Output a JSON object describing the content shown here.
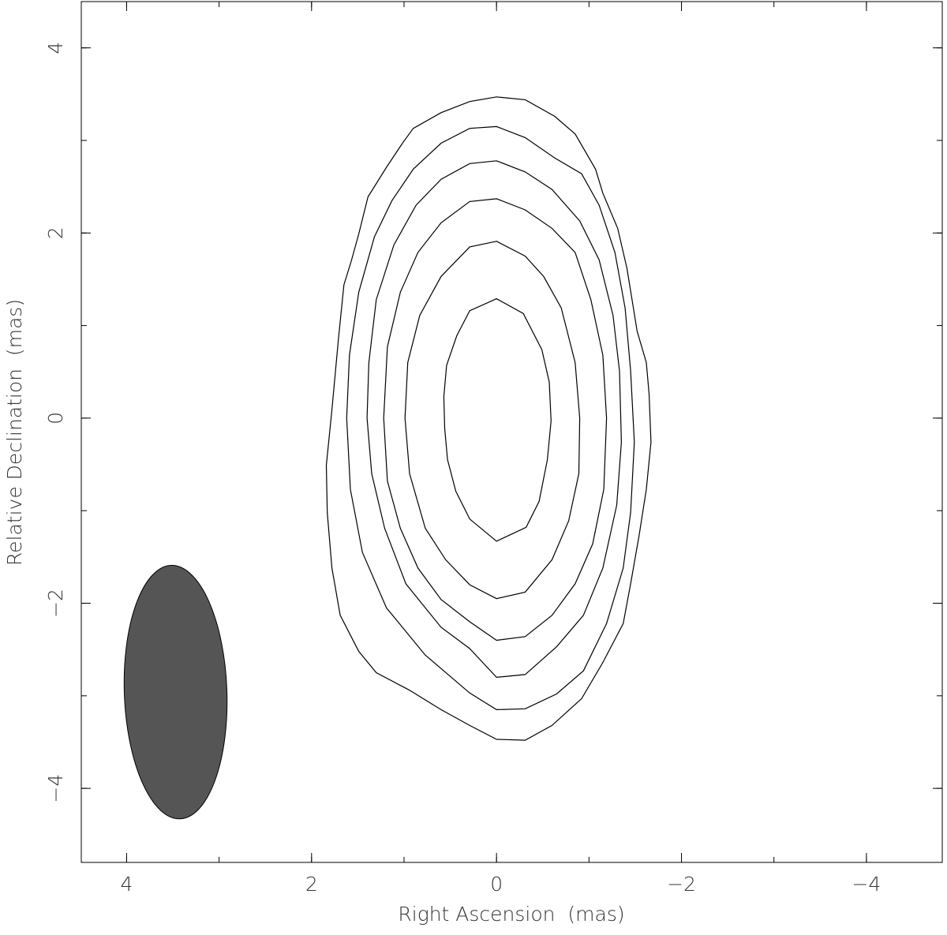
{
  "chart_data": {
    "type": "contour",
    "x_label": "Right Ascension  (mas)",
    "y_label": "Relative Declination  (mas)",
    "xlim": [
      4.49,
      -4.82
    ],
    "ylim": [
      -4.8,
      4.5
    ],
    "xticks": [
      4,
      2,
      0,
      {
        "value": -2,
        "label": "−2"
      },
      {
        "value": -4,
        "label": "−4"
      }
    ],
    "yticks": [
      {
        "value": -4,
        "label": "−4"
      },
      {
        "value": -2,
        "label": "−2"
      },
      0,
      2,
      4
    ],
    "xminor": [
      4,
      3,
      2,
      1,
      0,
      -1,
      -2,
      -3,
      -4
    ],
    "yminor": [
      -4,
      -3,
      -2,
      -1,
      0,
      1,
      2,
      3,
      4
    ],
    "color": "#000000",
    "contours": [
      {
        "x": [
          0,
          0.29,
          0.43,
          0.54,
          0.57,
          0.56,
          0.53,
          0.44,
          0.29,
          0,
          -0.32,
          -0.46,
          -0.55,
          -0.59,
          -0.57,
          -0.49,
          -0.29
        ],
        "y": [
          1.29,
          1.16,
          0.89,
          0.57,
          0.23,
          -0.11,
          -0.45,
          -0.79,
          -1.09,
          -1.33,
          -1.18,
          -0.9,
          -0.45,
          -0.03,
          0.39,
          0.74,
          1.13
        ]
      },
      {
        "x": [
          0,
          0.29,
          0.6,
          0.83,
          0.96,
          0.99,
          0.94,
          0.77,
          0.55,
          0.29,
          0,
          -0.31,
          -0.6,
          -0.78,
          -0.89,
          -0.9,
          -0.85,
          -0.7,
          -0.51,
          -0.31
        ],
        "y": [
          1.91,
          1.85,
          1.53,
          1.11,
          0.6,
          0,
          -0.6,
          -1.19,
          -1.53,
          -1.8,
          -1.95,
          -1.88,
          -1.53,
          -1.11,
          -0.6,
          0,
          0.6,
          1.19,
          1.53,
          1.75
        ]
      },
      {
        "x": [
          0,
          0.29,
          0.6,
          0.85,
          1.04,
          1.18,
          1.22,
          1.18,
          1.04,
          0.85,
          0.6,
          0.29,
          0,
          -0.31,
          -0.6,
          -0.85,
          -1.04,
          -1.16,
          -1.19,
          -1.15,
          -1.02,
          -0.85,
          -0.6,
          -0.31
        ],
        "y": [
          2.37,
          2.34,
          2.11,
          1.79,
          1.36,
          0.77,
          0,
          -0.68,
          -1.19,
          -1.62,
          -1.96,
          -2.2,
          -2.4,
          -2.36,
          -2.13,
          -1.79,
          -1.36,
          -0.77,
          0,
          0.68,
          1.28,
          1.79,
          2.05,
          2.25
        ]
      },
      {
        "x": [
          0,
          0.29,
          0.6,
          0.87,
          1.11,
          1.3,
          1.38,
          1.4,
          1.35,
          1.21,
          0.98,
          0.6,
          0.29,
          0,
          -0.31,
          -0.65,
          -0.94,
          -1.15,
          -1.3,
          -1.35,
          -1.33,
          -1.26,
          -1.11,
          -0.9,
          -0.6,
          -0.31
        ],
        "y": [
          2.78,
          2.75,
          2.58,
          2.3,
          1.87,
          1.28,
          0.6,
          0,
          -0.6,
          -1.19,
          -1.79,
          -2.26,
          -2.49,
          -2.8,
          -2.77,
          -2.47,
          -2.13,
          -1.62,
          -0.94,
          -0.26,
          0.51,
          1.11,
          1.71,
          2.13,
          2.47,
          2.66
        ]
      },
      {
        "x": [
          0,
          0.29,
          0.6,
          0.9,
          1.13,
          1.32,
          1.49,
          1.59,
          1.62,
          1.58,
          1.45,
          1.19,
          0.77,
          0.29,
          0,
          -0.31,
          -0.65,
          -0.94,
          -1.19,
          -1.37,
          -1.45,
          -1.49,
          -1.45,
          -1.39,
          -1.28,
          -1.11,
          -0.92,
          -0.63,
          -0.31
        ],
        "y": [
          3.15,
          3.13,
          2.97,
          2.69,
          2.35,
          1.96,
          1.36,
          0.68,
          0,
          -0.77,
          -1.45,
          -2.05,
          -2.56,
          -2.97,
          -3.15,
          -3.14,
          -2.98,
          -2.73,
          -2.22,
          -1.62,
          -1.02,
          -0.26,
          0.51,
          1.19,
          1.79,
          2.3,
          2.64,
          2.81,
          3.03
        ]
      },
      {
        "x": [
          0,
          0.29,
          0.6,
          0.9,
          1.01,
          1.19,
          1.39,
          1.49,
          1.57,
          1.65,
          1.71,
          1.78,
          1.84,
          1.83,
          1.78,
          1.69,
          1.49,
          1.3,
          0.94,
          0.6,
          0.29,
          0,
          -0.31,
          -0.6,
          -0.92,
          -1.15,
          -1.37,
          -1.45,
          -1.54,
          -1.62,
          -1.67,
          -1.65,
          -1.62,
          -1.52,
          -1.48,
          -1.41,
          -1.31,
          -1.15,
          -1.07,
          -0.85,
          -0.63,
          -0.31
        ],
        "y": [
          3.47,
          3.42,
          3.3,
          3.13,
          2.98,
          2.71,
          2.39,
          1.99,
          1.7,
          1.44,
          0.85,
          0.09,
          -0.51,
          -1.02,
          -1.62,
          -2.13,
          -2.52,
          -2.75,
          -2.94,
          -3.15,
          -3.32,
          -3.47,
          -3.48,
          -3.32,
          -3.03,
          -2.64,
          -2.22,
          -1.79,
          -1.28,
          -0.77,
          -0.26,
          0.26,
          0.6,
          0.94,
          1.19,
          1.62,
          2.05,
          2.43,
          2.69,
          3.07,
          3.26,
          3.44
        ]
      }
    ],
    "beam": {
      "x": 3.47,
      "y": -2.96,
      "major": 2.74,
      "minor": 1.11,
      "pa": 2,
      "color": "#555555"
    }
  }
}
